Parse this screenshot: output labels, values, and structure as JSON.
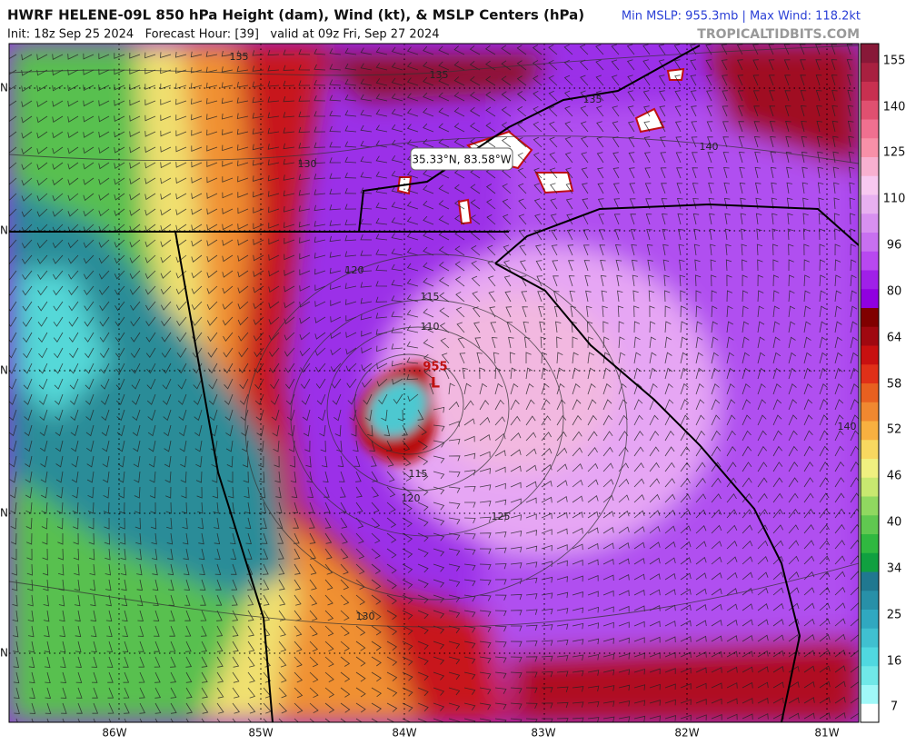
{
  "header": {
    "title": "HWRF HELENE-09L 850 hPa Height (dam), Wind (kt), & MSLP Centers (hPa)",
    "subtitle": "Init: 18z Sep 25 2024   Forecast Hour: [39]   valid at 09z Fri, Sep 27 2024",
    "stats": "Min MSLP: 955.3mb | Max Wind: 118.2kt",
    "source": "TROPICALTIDBITS.COM"
  },
  "map": {
    "location_label": "35.33°N, 83.58°W",
    "longitude_labels": [
      "86W",
      "85W",
      "84W",
      "83W",
      "82W",
      "81W"
    ],
    "latitude_labels": [
      "N",
      "N",
      "N",
      "N",
      "N"
    ],
    "contour_labels": [
      "135",
      "135",
      "135",
      "140",
      "130",
      "120",
      "115",
      "110",
      "115",
      "120",
      "125",
      "130",
      "140"
    ],
    "center_pressure": "955",
    "center_marker": "L"
  },
  "colorbar": {
    "ticks": [
      155,
      140,
      125,
      110,
      96,
      80,
      64,
      58,
      52,
      46,
      40,
      34,
      25,
      16,
      7
    ]
  }
}
